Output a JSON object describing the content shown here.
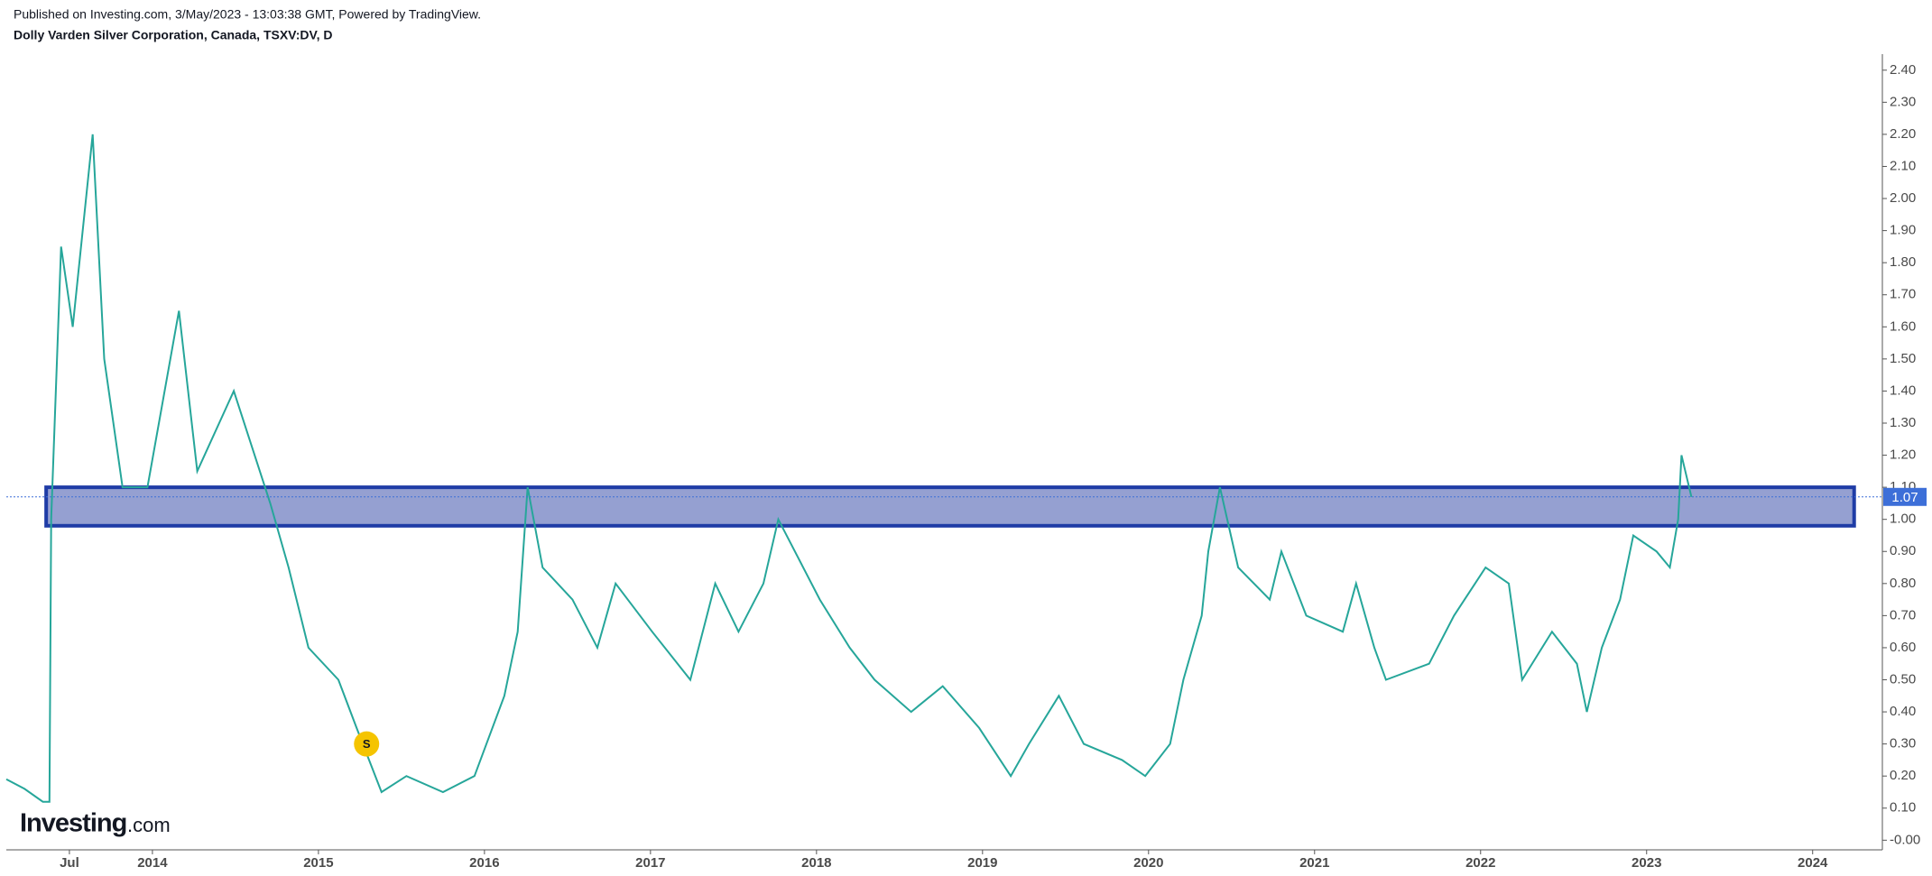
{
  "chart_data": {
    "type": "line",
    "subtitle": "Published on Investing.com, 3/May/2023 - 13:03:38 GMT, Powered by TradingView.",
    "title": "Dolly Varden Silver Corporation, Canada, TSXV:DV, D",
    "watermark": {
      "brand": "Investing",
      "suffix": ".com"
    },
    "color": "#26a69a",
    "x": [
      2013.12,
      2013.23,
      2013.34,
      2013.38,
      2013.39,
      2013.45,
      2013.52,
      2013.64,
      2013.71,
      2013.82,
      2013.97,
      2014.16,
      2014.27,
      2014.49,
      2014.71,
      2014.82,
      2014.94,
      2015.12,
      2015.23,
      2015.38,
      2015.53,
      2015.75,
      2015.94,
      2016.12,
      2016.2,
      2016.26,
      2016.35,
      2016.53,
      2016.68,
      2016.79,
      2017.01,
      2017.24,
      2017.39,
      2017.53,
      2017.68,
      2017.77,
      2018.02,
      2018.2,
      2018.35,
      2018.57,
      2018.76,
      2018.98,
      2019.17,
      2019.28,
      2019.46,
      2019.61,
      2019.84,
      2019.98,
      2020.13,
      2020.21,
      2020.32,
      2020.36,
      2020.43,
      2020.54,
      2020.73,
      2020.8,
      2020.95,
      2021.17,
      2021.25,
      2021.36,
      2021.43,
      2021.69,
      2021.84,
      2022.03,
      2022.17,
      2022.25,
      2022.43,
      2022.58,
      2022.64,
      2022.73,
      2022.84,
      2022.92,
      2023.06,
      2023.14,
      2023.19,
      2023.21,
      2023.27
    ],
    "values": [
      0.19,
      0.16,
      0.12,
      0.12,
      1.0,
      1.85,
      1.6,
      2.2,
      1.5,
      1.1,
      1.1,
      1.65,
      1.15,
      1.4,
      1.05,
      0.85,
      0.6,
      0.5,
      0.35,
      0.15,
      0.2,
      0.15,
      0.2,
      0.45,
      0.65,
      1.1,
      0.85,
      0.75,
      0.6,
      0.8,
      0.65,
      0.5,
      0.8,
      0.65,
      0.8,
      1.0,
      0.75,
      0.6,
      0.5,
      0.4,
      0.48,
      0.35,
      0.2,
      0.3,
      0.45,
      0.3,
      0.25,
      0.2,
      0.3,
      0.5,
      0.7,
      0.9,
      1.1,
      0.85,
      0.75,
      0.9,
      0.7,
      0.65,
      0.8,
      0.6,
      0.5,
      0.55,
      0.7,
      0.85,
      0.8,
      0.5,
      0.65,
      0.55,
      0.4,
      0.6,
      0.75,
      0.95,
      0.9,
      0.85,
      1.0,
      1.2,
      1.07
    ],
    "xlim": [
      2013.12,
      2024.42
    ],
    "xticks": [
      {
        "value": 2013.5,
        "label": "Jul"
      },
      2014,
      2015,
      2016,
      2017,
      2018,
      2019,
      2020,
      2021,
      2022,
      2023,
      2024
    ],
    "ylim": [
      -0.03,
      2.45
    ],
    "yticks": [
      {
        "value": 0,
        "label": "-0.00"
      },
      {
        "value": 0.1,
        "label": "0.10"
      },
      {
        "value": 0.2,
        "label": "0.20"
      },
      {
        "value": 0.3,
        "label": "0.30"
      },
      {
        "value": 0.4,
        "label": "0.40"
      },
      {
        "value": 0.5,
        "label": "0.50"
      },
      {
        "value": 0.6,
        "label": "0.60"
      },
      {
        "value": 0.7,
        "label": "0.70"
      },
      {
        "value": 0.8,
        "label": "0.80"
      },
      {
        "value": 0.9,
        "label": "0.90"
      },
      {
        "value": 1,
        "label": "1.00"
      },
      {
        "value": 1.1,
        "label": "1.10"
      },
      {
        "value": 1.2,
        "label": "1.20"
      },
      {
        "value": 1.3,
        "label": "1.30"
      },
      {
        "value": 1.4,
        "label": "1.40"
      },
      {
        "value": 1.5,
        "label": "1.50"
      },
      {
        "value": 1.6,
        "label": "1.60"
      },
      {
        "value": 1.7,
        "label": "1.70"
      },
      {
        "value": 1.8,
        "label": "1.80"
      },
      {
        "value": 1.9,
        "label": "1.90"
      },
      {
        "value": 2,
        "label": "2.00"
      },
      {
        "value": 2.1,
        "label": "2.10"
      },
      {
        "value": 2.2,
        "label": "2.20"
      },
      {
        "value": 2.3,
        "label": "2.30"
      },
      {
        "value": 2.4,
        "label": "2.40"
      }
    ],
    "zone": {
      "x": [
        2013.36,
        2024.25
      ],
      "y": [
        0.98,
        1.1
      ],
      "color": "#8a96cc",
      "border": "#1f3ca6"
    },
    "last_price": 1.07,
    "last_price_color": "#3d6fd8",
    "markers": [
      {
        "x": 2015.29,
        "y": 0.3,
        "label": "S",
        "color": "#f5c400"
      }
    ]
  }
}
